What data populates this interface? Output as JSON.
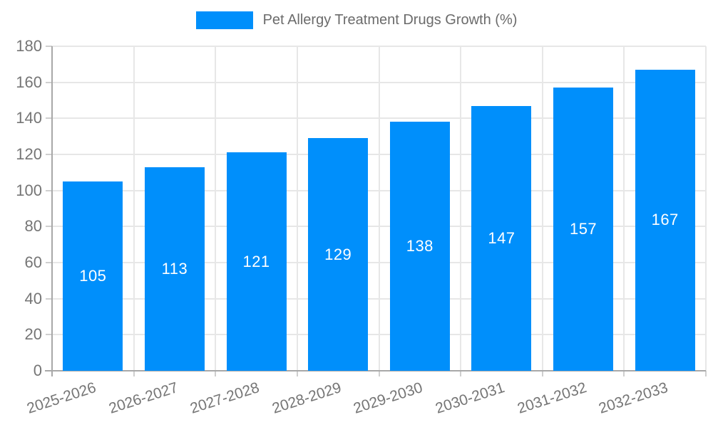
{
  "chart_data": {
    "type": "bar",
    "title": "Pet Allergy Treatment Drugs Growth (%)",
    "categories": [
      "2025-2026",
      "2026-2027",
      "2027-2028",
      "2028-2029",
      "2029-2030",
      "2030-2031",
      "2031-2032",
      "2032-2033"
    ],
    "values": [
      105,
      113,
      121,
      129,
      138,
      147,
      157,
      167
    ],
    "xlabel": "",
    "ylabel": "",
    "ylim": [
      0,
      180
    ],
    "ytick_step": 20,
    "yticks": [
      0,
      20,
      40,
      60,
      80,
      100,
      120,
      140,
      160,
      180
    ],
    "grid": true,
    "legend_position": "top",
    "bar_color": "#008FFB",
    "value_label_color": "#ffffff",
    "grid_color": "#e7e7e7",
    "axis_line_color": "#a8a8a8",
    "tick_mark_color": "#cfcfcf",
    "tick_label_color": "#757575",
    "legend_text_color": "#6b6b6b"
  }
}
